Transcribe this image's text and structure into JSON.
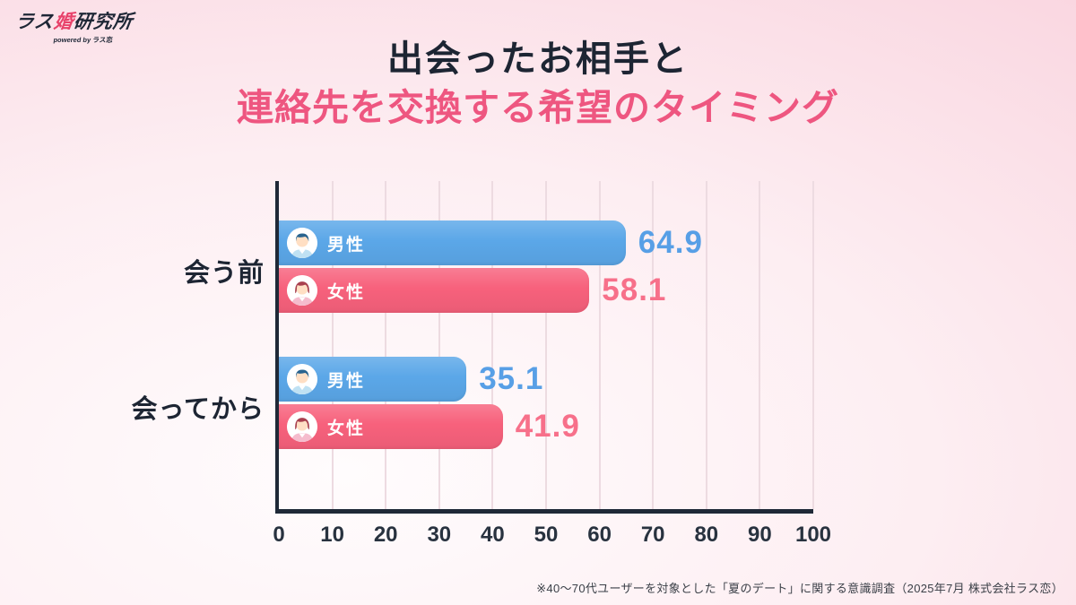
{
  "logo": {
    "text_parts": [
      "ラス",
      "婚",
      "研究所"
    ],
    "tagline": "powered by ラス恋"
  },
  "title": {
    "line1": "出会ったお相手と",
    "line2": "連絡先を交換する希望のタイミング"
  },
  "footnote": "※40〜70代ユーザーを対象とした「夏のデート」に関する意識調査（2025年7月 株式会社ラス恋）",
  "colors": {
    "background_pink": "#f8ccd9",
    "title_dark": "#1d2533",
    "title_pink": "#ee5680",
    "logo_accent": "#e8436b",
    "axis": "#1f2937",
    "gridline": "#eddbe1",
    "male_bar": "#5BA7E8",
    "female_bar": "#F7617C"
  },
  "chart_data": {
    "type": "bar",
    "orientation": "horizontal",
    "title": "出会ったお相手と連絡先を交換する希望のタイミング",
    "categories": [
      "会う前",
      "会ってから"
    ],
    "series": [
      {
        "name": "男性",
        "color": "#5BA7E8",
        "value_color": "#579FE6",
        "values": [
          64.9,
          35.1
        ]
      },
      {
        "name": "女性",
        "color": "#F7617C",
        "value_color": "#F7708A",
        "values": [
          58.1,
          41.9
        ]
      }
    ],
    "xlabel": "",
    "ylabel": "",
    "xlim": [
      0,
      100
    ],
    "xticks": [
      0,
      10,
      20,
      30,
      40,
      50,
      60,
      70,
      80,
      90,
      100
    ],
    "grid": true,
    "legend_position": "inside-bar",
    "value_labels": "outside-end"
  }
}
